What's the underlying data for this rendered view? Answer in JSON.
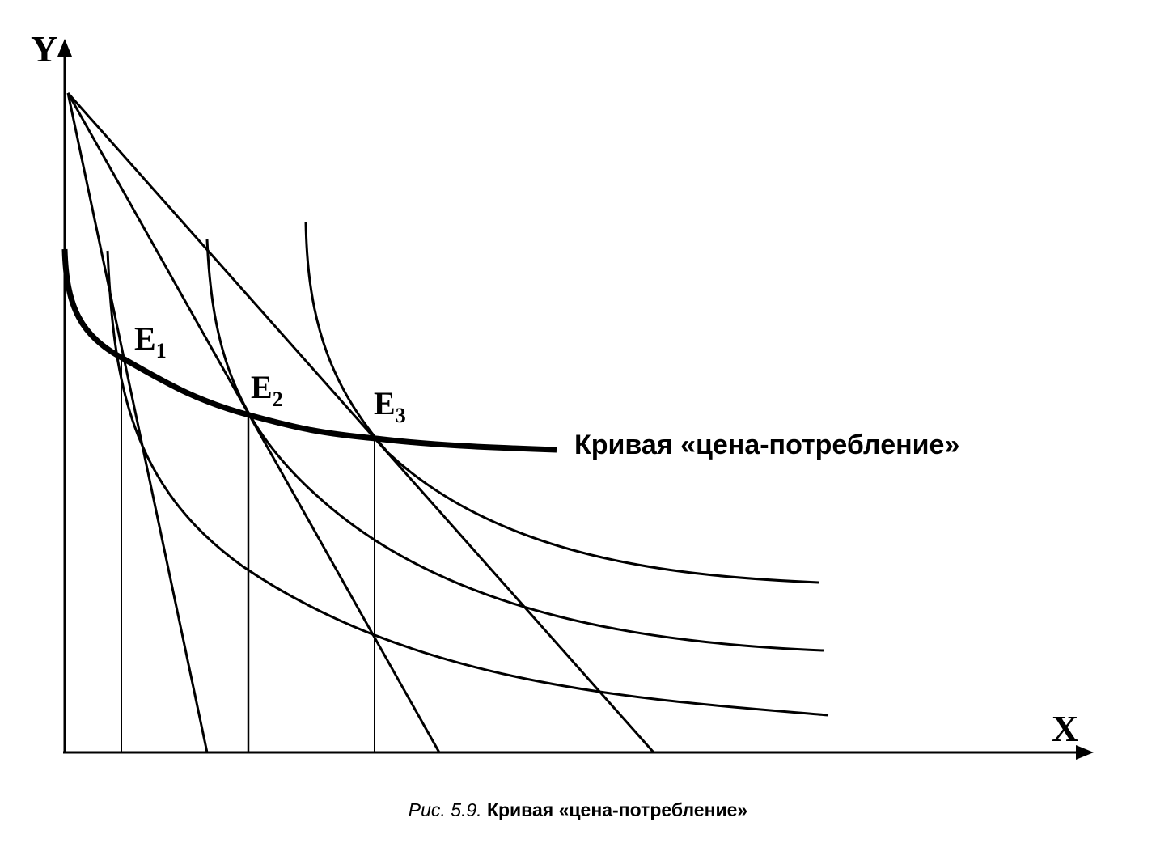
{
  "axes": {
    "x_label": "X",
    "y_label": "Y"
  },
  "points": [
    {
      "name": "E",
      "sub": "1"
    },
    {
      "name": "E",
      "sub": "2"
    },
    {
      "name": "E",
      "sub": "3"
    }
  ],
  "curve_label": "Кривая «цена-потребление»",
  "caption": {
    "number": "Рис. 5.9.",
    "title": "Кривая «цена-потребление»"
  }
}
